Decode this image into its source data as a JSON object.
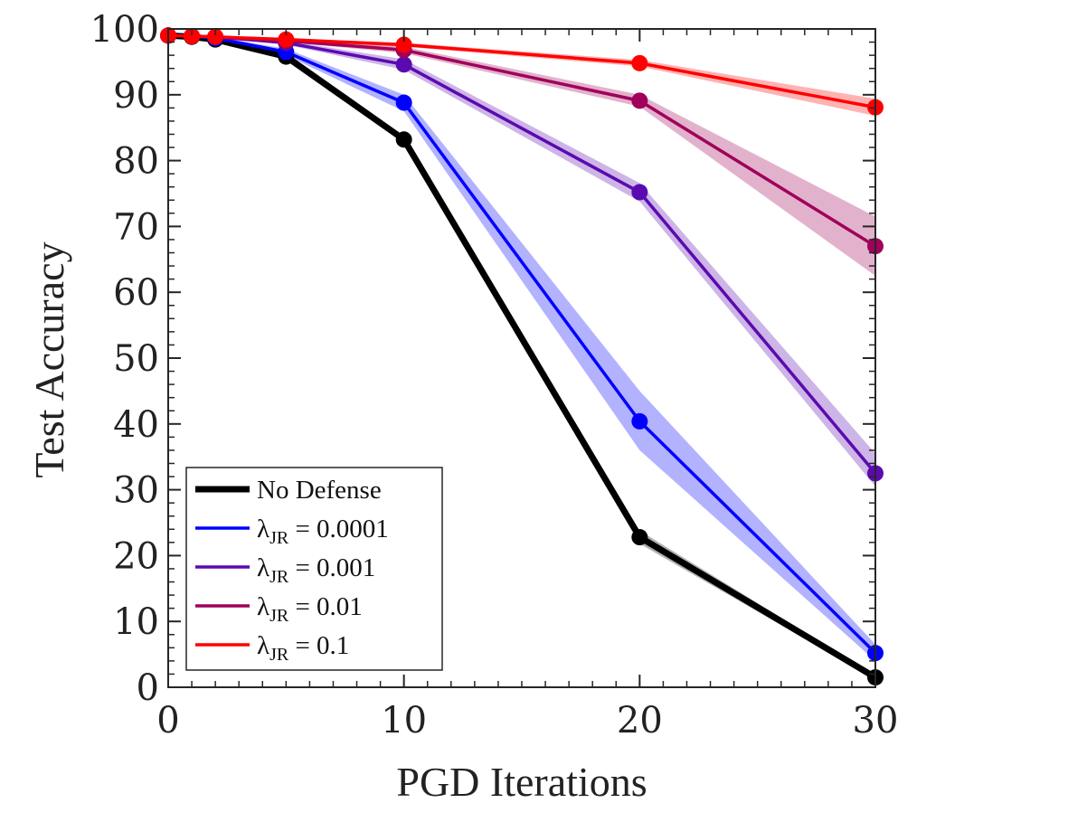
{
  "chart_data": {
    "type": "line",
    "xlabel": "PGD Iterations",
    "ylabel": "Test Accuracy",
    "xlim": [
      0,
      30
    ],
    "ylim": [
      0,
      100
    ],
    "xticks": [
      0,
      10,
      20,
      30
    ],
    "yticks": [
      0,
      10,
      20,
      30,
      40,
      50,
      60,
      70,
      80,
      90,
      100
    ],
    "x_minor_step": 1,
    "y_minor_step": 2,
    "grid": false,
    "legend_position": "bottom-left",
    "x": [
      0,
      1,
      2,
      5,
      10,
      20,
      30
    ],
    "series": [
      {
        "name": "No Defense",
        "legend_label": "No Defense",
        "color": "#000000",
        "values": [
          99.0,
          98.8,
          98.4,
          95.8,
          83.2,
          22.8,
          1.5
        ],
        "band_low": [
          99.0,
          98.7,
          98.3,
          95.5,
          82.7,
          21.8,
          1.2
        ],
        "band_high": [
          99.0,
          98.9,
          98.5,
          96.1,
          83.7,
          23.8,
          1.8
        ]
      },
      {
        "name": "lambda_JR = 0.0001",
        "legend_symbol": "λ",
        "legend_sub": "JR",
        "legend_value": " = 0.0001",
        "color": "#0000ff",
        "values": [
          99.0,
          98.9,
          98.6,
          96.5,
          88.8,
          40.4,
          5.2
        ],
        "band_low": [
          99.0,
          98.8,
          98.4,
          96.0,
          87.5,
          36.0,
          4.0
        ],
        "band_high": [
          99.0,
          99.0,
          98.8,
          97.0,
          90.0,
          45.0,
          6.5
        ]
      },
      {
        "name": "lambda_JR = 0.001",
        "legend_symbol": "λ",
        "legend_sub": "JR",
        "legend_value": " = 0.001",
        "color": "#5b0ab0",
        "values": [
          99.0,
          98.9,
          98.8,
          97.9,
          94.6,
          75.2,
          32.5
        ],
        "band_low": [
          99.0,
          98.8,
          98.7,
          97.6,
          93.8,
          73.8,
          30.5
        ],
        "band_high": [
          99.0,
          99.0,
          98.9,
          98.2,
          95.4,
          76.6,
          35.5
        ]
      },
      {
        "name": "lambda_JR = 0.01",
        "legend_symbol": "λ",
        "legend_sub": "JR",
        "legend_value": " = 0.01",
        "color": "#a0005a",
        "values": [
          99.0,
          98.9,
          98.8,
          98.2,
          96.8,
          89.1,
          67.0
        ],
        "band_low": [
          99.0,
          98.8,
          98.7,
          98.0,
          96.3,
          88.2,
          62.5
        ],
        "band_high": [
          99.0,
          99.0,
          98.9,
          98.4,
          97.3,
          90.0,
          71.5
        ]
      },
      {
        "name": "lambda_JR = 0.1",
        "legend_symbol": "λ",
        "legend_sub": "JR",
        "legend_value": " = 0.1",
        "color": "#ff0000",
        "values": [
          99.0,
          98.9,
          98.8,
          98.4,
          97.6,
          94.8,
          88.1
        ],
        "band_low": [
          99.0,
          98.8,
          98.7,
          98.2,
          97.3,
          94.3,
          86.8
        ],
        "band_high": [
          99.0,
          99.0,
          98.9,
          98.6,
          97.9,
          95.3,
          89.4
        ]
      }
    ]
  }
}
